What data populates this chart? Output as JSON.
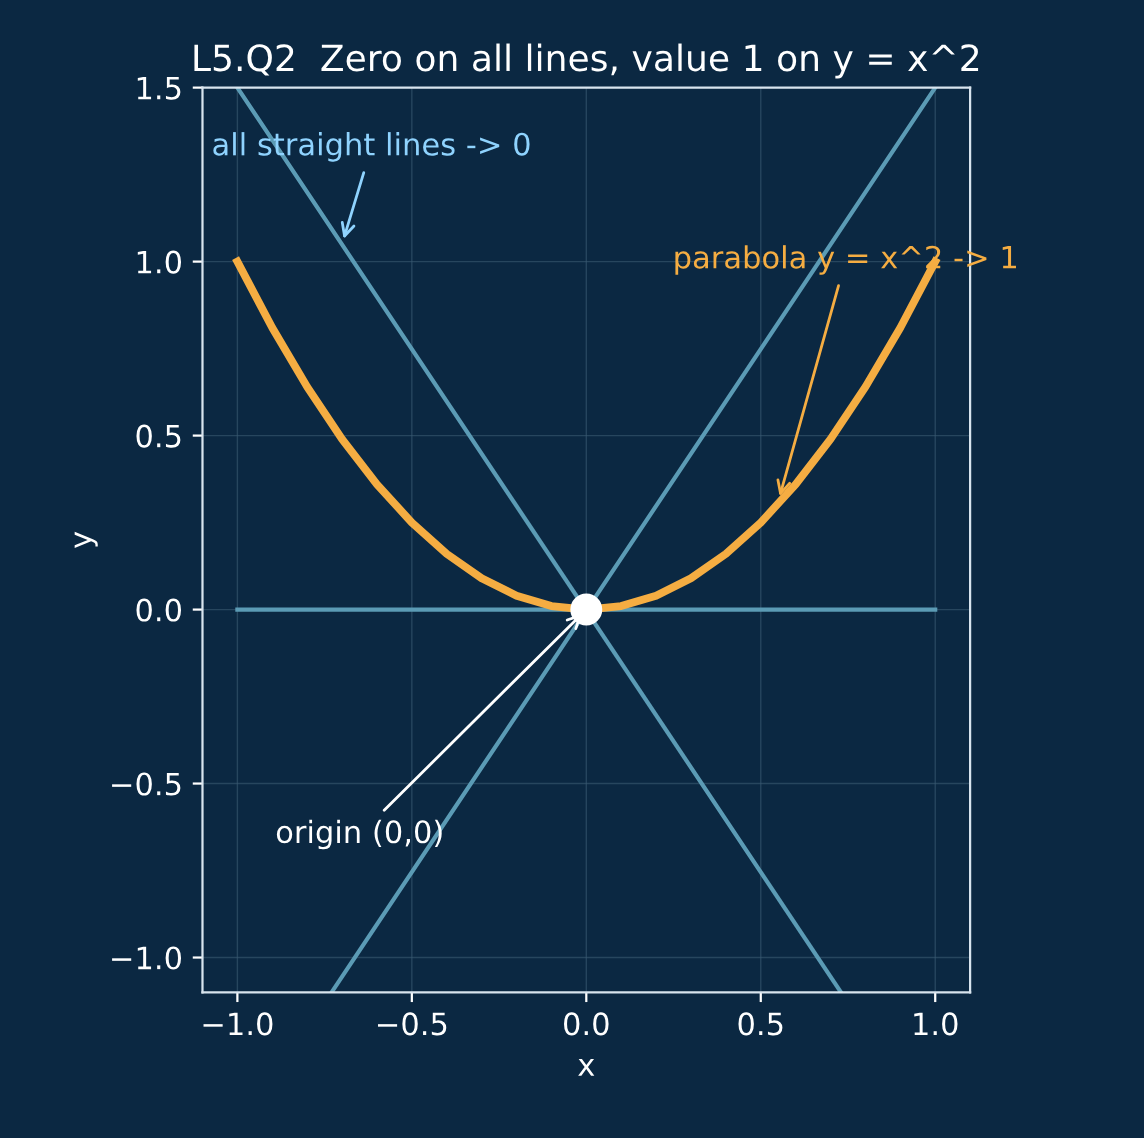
{
  "chart_data": {
    "type": "line",
    "title": "L5.Q2  Zero on all lines, value 1 on y = x^2",
    "xlabel": "x",
    "ylabel": "y",
    "series": [
      {
        "color": "#5b9bb5",
        "x": [
          -1.0,
          1.0
        ],
        "values": [
          0.0,
          0.0
        ]
      },
      {
        "color": "#5b9bb5",
        "x": [
          -0.73,
          1.0
        ],
        "values": [
          -1.1,
          1.5
        ]
      },
      {
        "color": "#5b9bb5",
        "x": [
          -1.0,
          0.73
        ],
        "values": [
          1.5,
          -1.1
        ]
      },
      {
        "color": "#f5ad42",
        "x": [
          -1.0,
          -0.9,
          -0.8,
          -0.7,
          -0.6,
          -0.5,
          -0.4,
          -0.3,
          -0.2,
          -0.1,
          0.0,
          0.1,
          0.2,
          0.3,
          0.4,
          0.5,
          0.6,
          0.7,
          0.8,
          0.9,
          1.0
        ],
        "values": [
          1.0,
          0.81,
          0.64,
          0.49,
          0.36,
          0.25,
          0.16,
          0.09,
          0.04,
          0.01,
          0.0,
          0.01,
          0.04,
          0.09,
          0.16,
          0.25,
          0.36,
          0.49,
          0.64,
          0.81,
          1.0
        ]
      },
      {
        "type": "scatter",
        "color": "#ffffff",
        "x": [
          0.0
        ],
        "values": [
          0.0
        ],
        "marker": "circle"
      }
    ],
    "annotations": [
      {
        "text": "all straight lines -> 0",
        "x": -0.7,
        "y": 1.05
      },
      {
        "text": "parabola y = x^2 -> 1",
        "x": 0.55,
        "y": 0.31
      },
      {
        "text": "origin (0,0)",
        "x": 0.0,
        "y": 0.0
      }
    ],
    "xlim": [
      -1.1,
      1.1
    ],
    "ylim": [
      -1.1,
      1.5
    ],
    "xticks": [
      {
        "value": -1.0,
        "label": "−1.0"
      },
      {
        "value": -0.5,
        "label": "−0.5"
      },
      {
        "value": 0.0,
        "label": "0.0"
      },
      0.5,
      {
        "value": 1.0,
        "label": "1.0"
      }
    ],
    "yticks": [
      {
        "value": -1.0,
        "label": "−1.0"
      },
      {
        "value": -0.5,
        "label": "−0.5"
      },
      {
        "value": 0.0,
        "label": "0.0"
      },
      0.5,
      {
        "value": 1.0,
        "label": "1.0"
      },
      1.5
    ],
    "grid": true,
    "legend": false
  }
}
